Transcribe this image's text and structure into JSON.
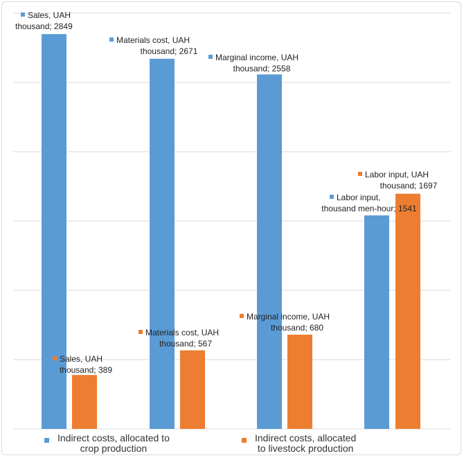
{
  "chart_data": {
    "type": "bar",
    "title": "",
    "xlabel": "",
    "ylabel": "",
    "ylim": [
      0,
      3000
    ],
    "grid": true,
    "legend_position": "bottom",
    "categories": [
      "",
      "",
      "",
      ""
    ],
    "series": [
      {
        "name": "Indirect costs, allocated to crop production",
        "color": "#5b9bd5",
        "values": [
          2849,
          2671,
          2558,
          1541
        ],
        "data_labels": [
          [
            "Sales, UAH",
            "thousand; 2849"
          ],
          [
            "Materials cost, UAH",
            "thousand; 2671"
          ],
          [
            "Marginal income, UAH",
            "thousand; 2558"
          ],
          [
            "Labor input,",
            "thousand men-hour; 1541"
          ]
        ]
      },
      {
        "name": "Indirect costs, allocated to livestock production",
        "color": "#ed7d31",
        "values": [
          389,
          567,
          680,
          1697
        ],
        "data_labels": [
          [
            "Sales, UAH",
            "thousand; 389"
          ],
          [
            "Materials cost, UAH",
            "thousand; 567"
          ],
          [
            "Marginal income, UAH",
            "thousand; 680"
          ],
          [
            "Labor input, UAH",
            "thousand; 1697"
          ]
        ]
      }
    ]
  },
  "legend": {
    "crop": [
      "Indirect costs, allocated to",
      "crop production"
    ],
    "livestock": [
      "Indirect costs, allocated",
      "to livestock production"
    ]
  }
}
